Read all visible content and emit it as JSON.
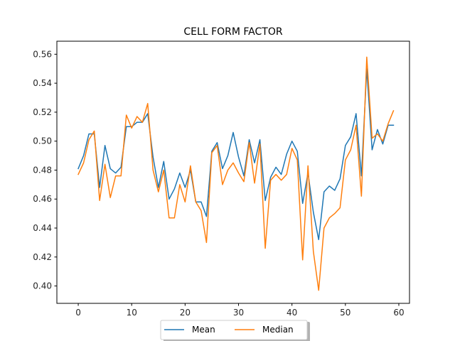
{
  "chart_data": {
    "type": "line",
    "title": "CELL FORM FACTOR",
    "xlabel": "",
    "ylabel": "",
    "xlim": [
      -4,
      62
    ],
    "ylim": [
      0.388,
      0.569
    ],
    "xticks": [
      0,
      10,
      20,
      30,
      40,
      50,
      60
    ],
    "yticks": [
      0.4,
      0.42,
      0.44,
      0.46,
      0.48,
      0.5,
      0.52,
      0.54,
      0.56
    ],
    "xtick_labels": [
      "0",
      "10",
      "20",
      "30",
      "40",
      "50",
      "60"
    ],
    "ytick_labels": [
      "0.40",
      "0.42",
      "0.44",
      "0.46",
      "0.48",
      "0.50",
      "0.52",
      "0.54",
      "0.56"
    ],
    "grid": false,
    "legend_position": "bottom-center",
    "x": [
      0,
      1,
      2,
      3,
      4,
      5,
      6,
      7,
      8,
      9,
      10,
      11,
      12,
      13,
      14,
      15,
      16,
      17,
      18,
      19,
      20,
      21,
      22,
      23,
      24,
      25,
      26,
      27,
      28,
      29,
      30,
      31,
      32,
      33,
      34,
      35,
      36,
      37,
      38,
      39,
      40,
      41,
      42,
      43,
      44,
      45,
      46,
      47,
      48,
      49,
      50,
      51,
      52,
      53,
      54,
      55,
      56,
      57,
      58,
      59
    ],
    "series": [
      {
        "name": "Mean",
        "color": "#1f77b4",
        "values": [
          0.481,
          0.49,
          0.505,
          0.505,
          0.468,
          0.497,
          0.481,
          0.478,
          0.482,
          0.51,
          0.51,
          0.513,
          0.513,
          0.519,
          0.489,
          0.468,
          0.486,
          0.46,
          0.467,
          0.478,
          0.468,
          0.48,
          0.458,
          0.458,
          0.448,
          0.493,
          0.499,
          0.481,
          0.49,
          0.506,
          0.489,
          0.476,
          0.501,
          0.485,
          0.501,
          0.459,
          0.475,
          0.482,
          0.477,
          0.491,
          0.5,
          0.493,
          0.457,
          0.478,
          0.451,
          0.432,
          0.465,
          0.469,
          0.466,
          0.474,
          0.497,
          0.503,
          0.519,
          0.476,
          0.55,
          0.494,
          0.508,
          0.498,
          0.511,
          0.511
        ]
      },
      {
        "name": "Median",
        "color": "#ff7f0e",
        "values": [
          0.477,
          0.485,
          0.501,
          0.507,
          0.459,
          0.484,
          0.461,
          0.476,
          0.476,
          0.518,
          0.509,
          0.517,
          0.513,
          0.526,
          0.48,
          0.465,
          0.48,
          0.447,
          0.447,
          0.47,
          0.458,
          0.483,
          0.458,
          0.452,
          0.43,
          0.492,
          0.497,
          0.47,
          0.48,
          0.485,
          0.478,
          0.472,
          0.499,
          0.471,
          0.498,
          0.426,
          0.473,
          0.477,
          0.473,
          0.477,
          0.495,
          0.487,
          0.418,
          0.483,
          0.424,
          0.397,
          0.44,
          0.447,
          0.45,
          0.454,
          0.487,
          0.494,
          0.511,
          0.462,
          0.558,
          0.502,
          0.505,
          0.5,
          0.512,
          0.521
        ]
      }
    ]
  }
}
